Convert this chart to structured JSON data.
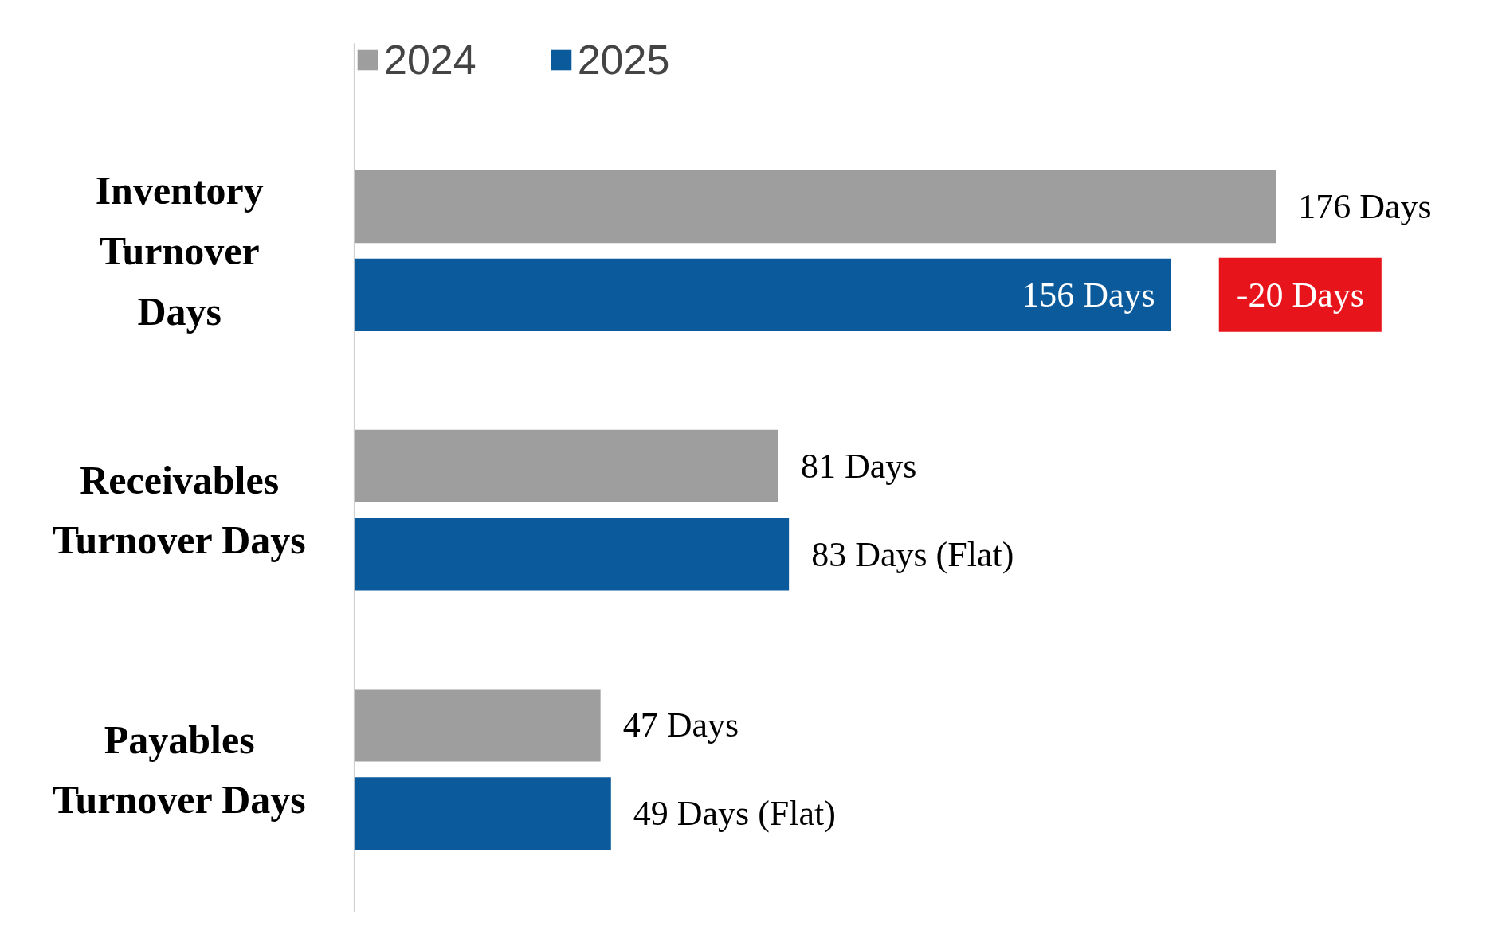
{
  "chart_data": {
    "type": "bar",
    "orientation": "horizontal",
    "categories": [
      "Inventory\nTurnover\nDays",
      "Receivables\nTurnover Days",
      "Payables\nTurnover Days"
    ],
    "series": [
      {
        "name": "2024",
        "color": "#9e9e9e",
        "values": [
          176,
          81,
          47
        ],
        "value_labels": [
          "176 Days",
          "81 Days",
          "47 Days"
        ]
      },
      {
        "name": "2025",
        "color": "#0a5a9c",
        "values": [
          156,
          83,
          49
        ],
        "value_labels": [
          "156 Days",
          "83 Days (Flat)",
          "49 Days  (Flat)"
        ]
      }
    ],
    "annotations": [
      "-20 Days"
    ],
    "legend": "top",
    "grid": false
  }
}
